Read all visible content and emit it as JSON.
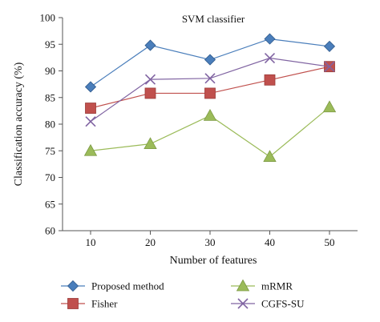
{
  "chart_data": {
    "type": "line",
    "title": "SVM classifier",
    "xlabel": "Number of features",
    "ylabel": "Classification accuracy (%)",
    "categories": [
      "10",
      "20",
      "30",
      "40",
      "50"
    ],
    "yticks": [
      "60",
      "65",
      "70",
      "75",
      "80",
      "85",
      "90",
      "95",
      "100"
    ],
    "ylim": [
      60,
      100
    ],
    "grid": false,
    "legend_position": "bottom",
    "series": [
      {
        "name": "Proposed method",
        "values": [
          87.0,
          94.8,
          92.1,
          96.0,
          94.6
        ],
        "color": "#4a7ebb",
        "marker": "diamond"
      },
      {
        "name": "Fisher",
        "values": [
          83.0,
          85.8,
          85.8,
          88.3,
          90.8
        ],
        "color": "#c0504d",
        "marker": "square"
      },
      {
        "name": "mRMR",
        "values": [
          75.0,
          76.3,
          81.6,
          73.9,
          83.2
        ],
        "color": "#9bbb59",
        "marker": "triangle"
      },
      {
        "name": "CGFS-SU",
        "values": [
          80.5,
          88.4,
          88.6,
          92.4,
          90.8
        ],
        "color": "#8064a2",
        "marker": "x"
      }
    ]
  }
}
